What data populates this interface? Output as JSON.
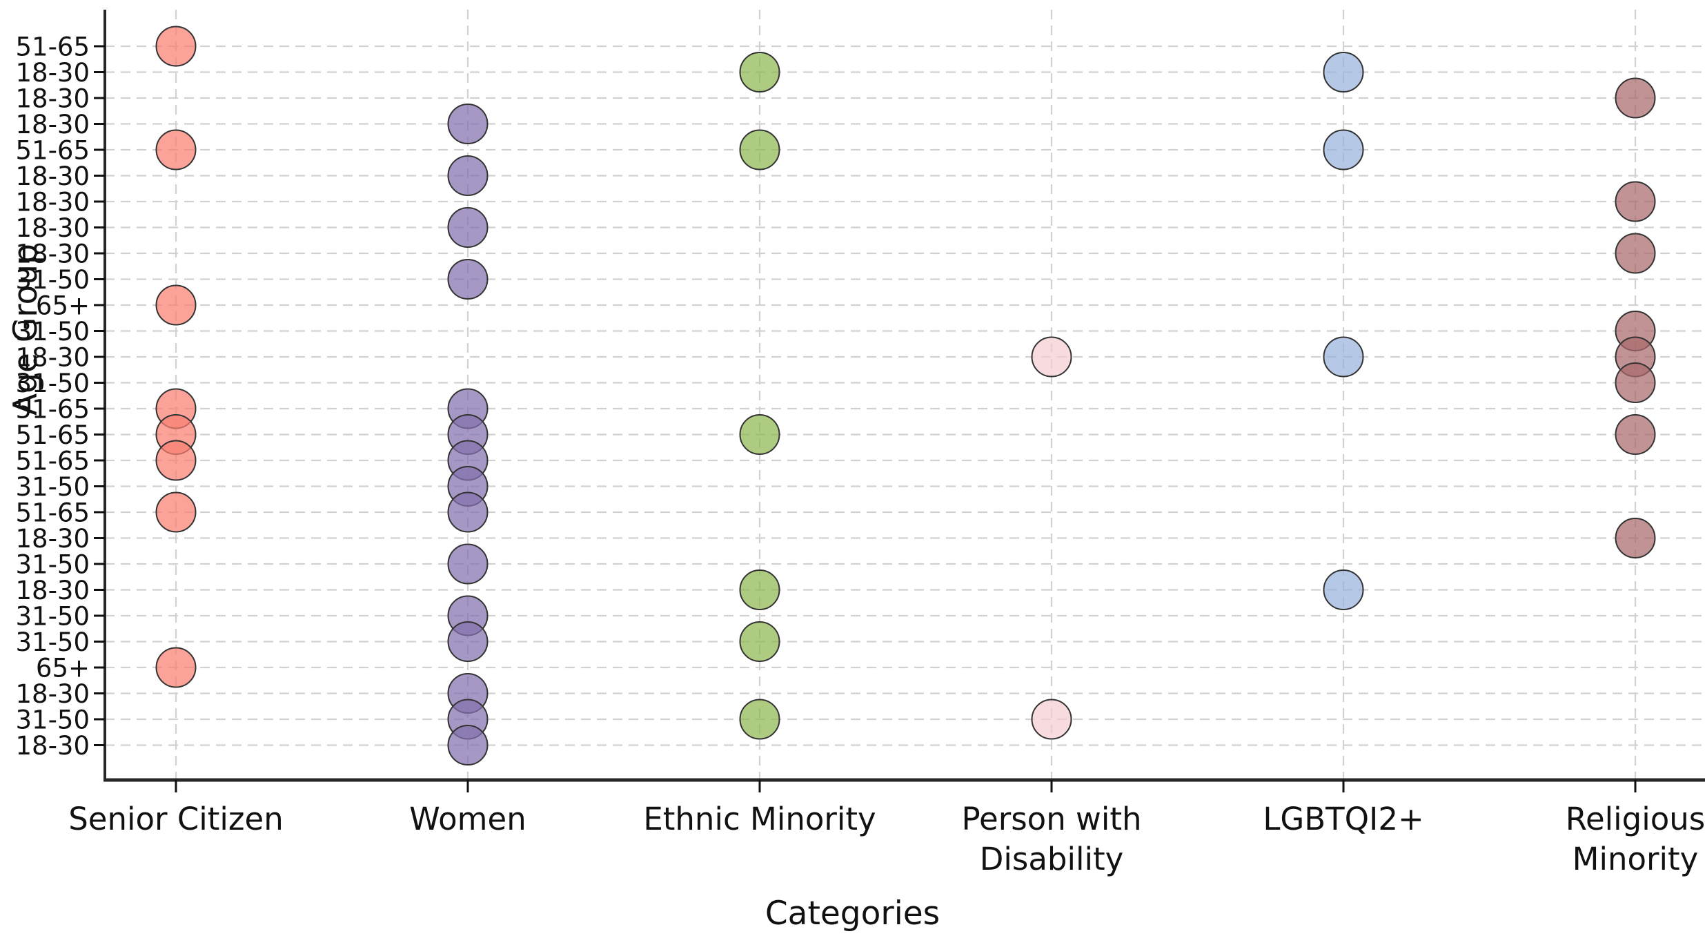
{
  "chart_data": {
    "type": "scatter",
    "title": "",
    "xlabel": "Categories",
    "ylabel": "Age Group",
    "grid": "dashed",
    "legend_position": "none",
    "x_categories": [
      {
        "label": "Senior Citizen"
      },
      {
        "label": "Women"
      },
      {
        "label": "Ethnic Minority"
      },
      {
        "label": "Person with\nDisability"
      },
      {
        "label": "LGBTQI2+"
      },
      {
        "label": "Religious\nMinority"
      }
    ],
    "y_row_labels": [
      "51-65",
      "18-30",
      "18-30",
      "18-30",
      "51-65",
      "18-30",
      "18-30",
      "18-30",
      "18-30",
      "31-50",
      "65+",
      "31-50",
      "18-30",
      "31-50",
      "51-65",
      "51-65",
      "51-65",
      "31-50",
      "51-65",
      "18-30",
      "31-50",
      "18-30",
      "31-50",
      "31-50",
      "65+",
      "18-30",
      "31-50",
      "18-30"
    ],
    "series": [
      {
        "name": "Senior Citizen",
        "color": "#FA8072",
        "rows": [
          1,
          5,
          11,
          15,
          16,
          17,
          19,
          25
        ]
      },
      {
        "name": "Women",
        "color": "#8470AD",
        "rows": [
          4,
          6,
          8,
          10,
          15,
          16,
          17,
          18,
          19,
          21,
          23,
          24,
          26,
          27,
          28
        ]
      },
      {
        "name": "Ethnic Minority",
        "color": "#8FB752",
        "rows": [
          2,
          5,
          16,
          22,
          24,
          27
        ]
      },
      {
        "name": "Person with Disability",
        "color": "#F5CDD2",
        "rows": [
          13,
          27
        ]
      },
      {
        "name": "LGBTQI2+",
        "color": "#98B3DD",
        "rows": [
          2,
          5,
          13,
          22
        ]
      },
      {
        "name": "Religious Minority",
        "color": "#A9696B",
        "rows": [
          3,
          7,
          9,
          12,
          13,
          14,
          16,
          20
        ]
      }
    ],
    "style_colors": {
      "dot_stroke": "#333333",
      "grid_line": "#d1d1d1",
      "spine": "#262626",
      "tick": "#111111",
      "background": "#ffffff"
    }
  }
}
